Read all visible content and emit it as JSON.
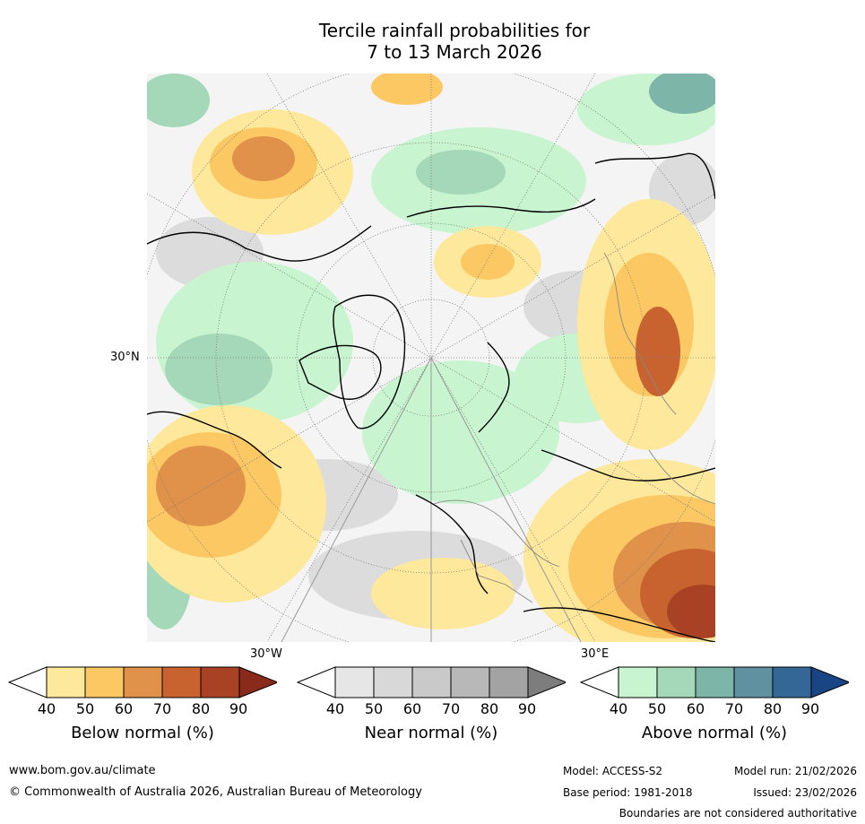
{
  "title": {
    "line1": "Tercile rainfall probabilities for",
    "line2": "7 to 13 March 2026"
  },
  "map": {
    "latitude_label": "30°N",
    "longitude_labels": {
      "west": "30°W",
      "east": "30°E"
    },
    "projection": "north polar stereographic",
    "coastline_color": "#000000",
    "border_color": "#888888"
  },
  "colorbars": [
    {
      "name": "below",
      "label": "Below normal (%)",
      "ticks": [
        "40",
        "50",
        "60",
        "70",
        "80",
        "90"
      ],
      "colors": [
        "#ffffff",
        "#fde89b",
        "#fbc864",
        "#e0924a",
        "#c8632f",
        "#a94225",
        "#8a2a1a"
      ]
    },
    {
      "name": "near",
      "label": "Near normal (%)",
      "ticks": [
        "40",
        "50",
        "60",
        "70",
        "80",
        "90"
      ],
      "colors": [
        "#ffffff",
        "#e6e6e6",
        "#d8d8d8",
        "#c9c9c9",
        "#b8b8b8",
        "#a3a3a3",
        "#7d7d7d"
      ]
    },
    {
      "name": "above",
      "label": "Above normal (%)",
      "ticks": [
        "40",
        "50",
        "60",
        "70",
        "80",
        "90"
      ],
      "colors": [
        "#ffffff",
        "#c8f5cf",
        "#a4d8b9",
        "#7db5a8",
        "#5f91a0",
        "#346796",
        "#1a4585"
      ]
    }
  ],
  "footer": {
    "website": "www.bom.gov.au/climate",
    "copyright": "© Commonwealth of Australia 2026, Australian Bureau of Meteorology",
    "model": "Model: ACCESS-S2",
    "model_run": "Model run: 21/02/2026",
    "base_period": "Base period: 1981-2018",
    "issued": "Issued: 23/02/2026",
    "disclaimer": "Boundaries are not considered authoritative"
  }
}
